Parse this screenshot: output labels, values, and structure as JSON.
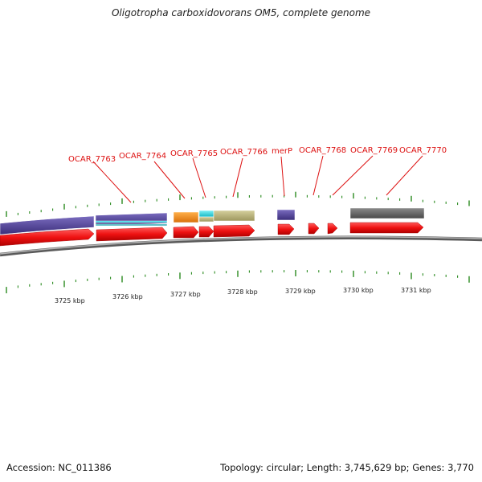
{
  "title": "Oligotropha carboxidovorans OM5, complete genome",
  "footer": {
    "accession": "Accession: NC_011386",
    "stats": "Topology: circular; Length: 3,745,629 bp; Genes: 3,770"
  },
  "colors": {
    "label": "#dd1111",
    "leader": "#dd1111",
    "tick": "#2a8a1f",
    "cds": "#ee1111",
    "backbone": "#8a8a8a"
  },
  "gene_labels": [
    "OCAR_7763",
    "OCAR_7764",
    "OCAR_7765",
    "OCAR_7766",
    "merP",
    "OCAR_7768",
    "OCAR_7769",
    "OCAR_7770"
  ],
  "kbp_labels": [
    "3725 kbp",
    "3726 kbp",
    "3727 kbp",
    "3728 kbp",
    "3729 kbp",
    "3730 kbp",
    "3731 kbp"
  ],
  "feature_colors": {
    "purple": "#4b3d8f",
    "orange": "#ef8a15",
    "cyan": "#22d6e0",
    "khaki": "#b8b27c",
    "gray": "#606060",
    "teal": "#2aaab5"
  }
}
